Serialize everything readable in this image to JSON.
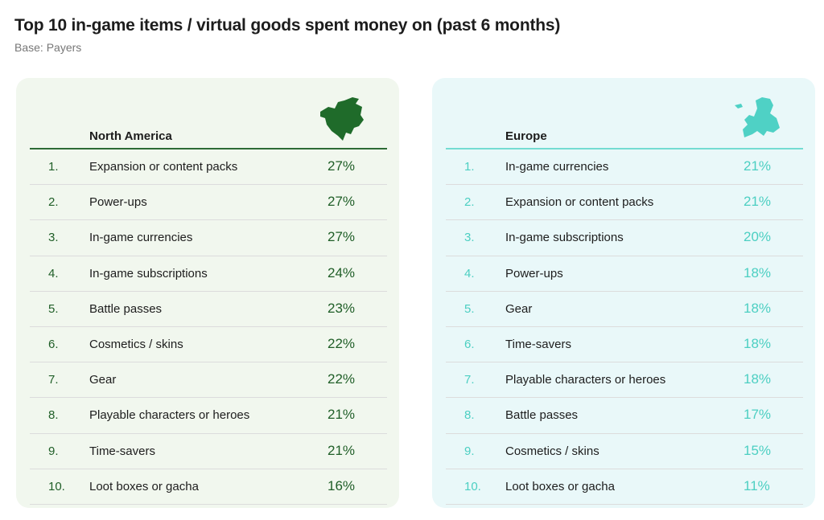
{
  "title": "Top 10 in-game items / virtual goods spent money on (past 6 months)",
  "subtitle": "Base: Payers",
  "colors": {
    "north_america": "#1f6b2a",
    "europe": "#4fd1c5"
  },
  "chart_data": {
    "type": "table",
    "panels": [
      {
        "region": "North America",
        "icon": "north-america-map-icon",
        "rows": [
          {
            "rank": "1.",
            "item": "Expansion or content packs",
            "value": "27%"
          },
          {
            "rank": "2.",
            "item": "Power-ups",
            "value": "27%"
          },
          {
            "rank": "3.",
            "item": "In-game currencies",
            "value": "27%"
          },
          {
            "rank": "4.",
            "item": "In-game subscriptions",
            "value": "24%"
          },
          {
            "rank": "5.",
            "item": "Battle passes",
            "value": "23%"
          },
          {
            "rank": "6.",
            "item": "Cosmetics / skins",
            "value": "22%"
          },
          {
            "rank": "7.",
            "item": "Gear",
            "value": "22%"
          },
          {
            "rank": "8.",
            "item": "Playable characters or heroes",
            "value": "21%"
          },
          {
            "rank": "9.",
            "item": "Time-savers",
            "value": "21%"
          },
          {
            "rank": "10.",
            "item": "Loot boxes or gacha",
            "value": "16%"
          }
        ]
      },
      {
        "region": "Europe",
        "icon": "europe-map-icon",
        "rows": [
          {
            "rank": "1.",
            "item": "In-game currencies",
            "value": "21%"
          },
          {
            "rank": "2.",
            "item": "Expansion or content packs",
            "value": "21%"
          },
          {
            "rank": "3.",
            "item": "In-game subscriptions",
            "value": "20%"
          },
          {
            "rank": "4.",
            "item": "Power-ups",
            "value": "18%"
          },
          {
            "rank": "5.",
            "item": "Gear",
            "value": "18%"
          },
          {
            "rank": "6.",
            "item": "Time-savers",
            "value": "18%"
          },
          {
            "rank": "7.",
            "item": "Playable characters or heroes",
            "value": "18%"
          },
          {
            "rank": "8.",
            "item": "Battle passes",
            "value": "17%"
          },
          {
            "rank": "9.",
            "item": "Cosmetics / skins",
            "value": "15%"
          },
          {
            "rank": "10.",
            "item": "Loot boxes or gacha",
            "value": "11%"
          }
        ]
      }
    ]
  }
}
